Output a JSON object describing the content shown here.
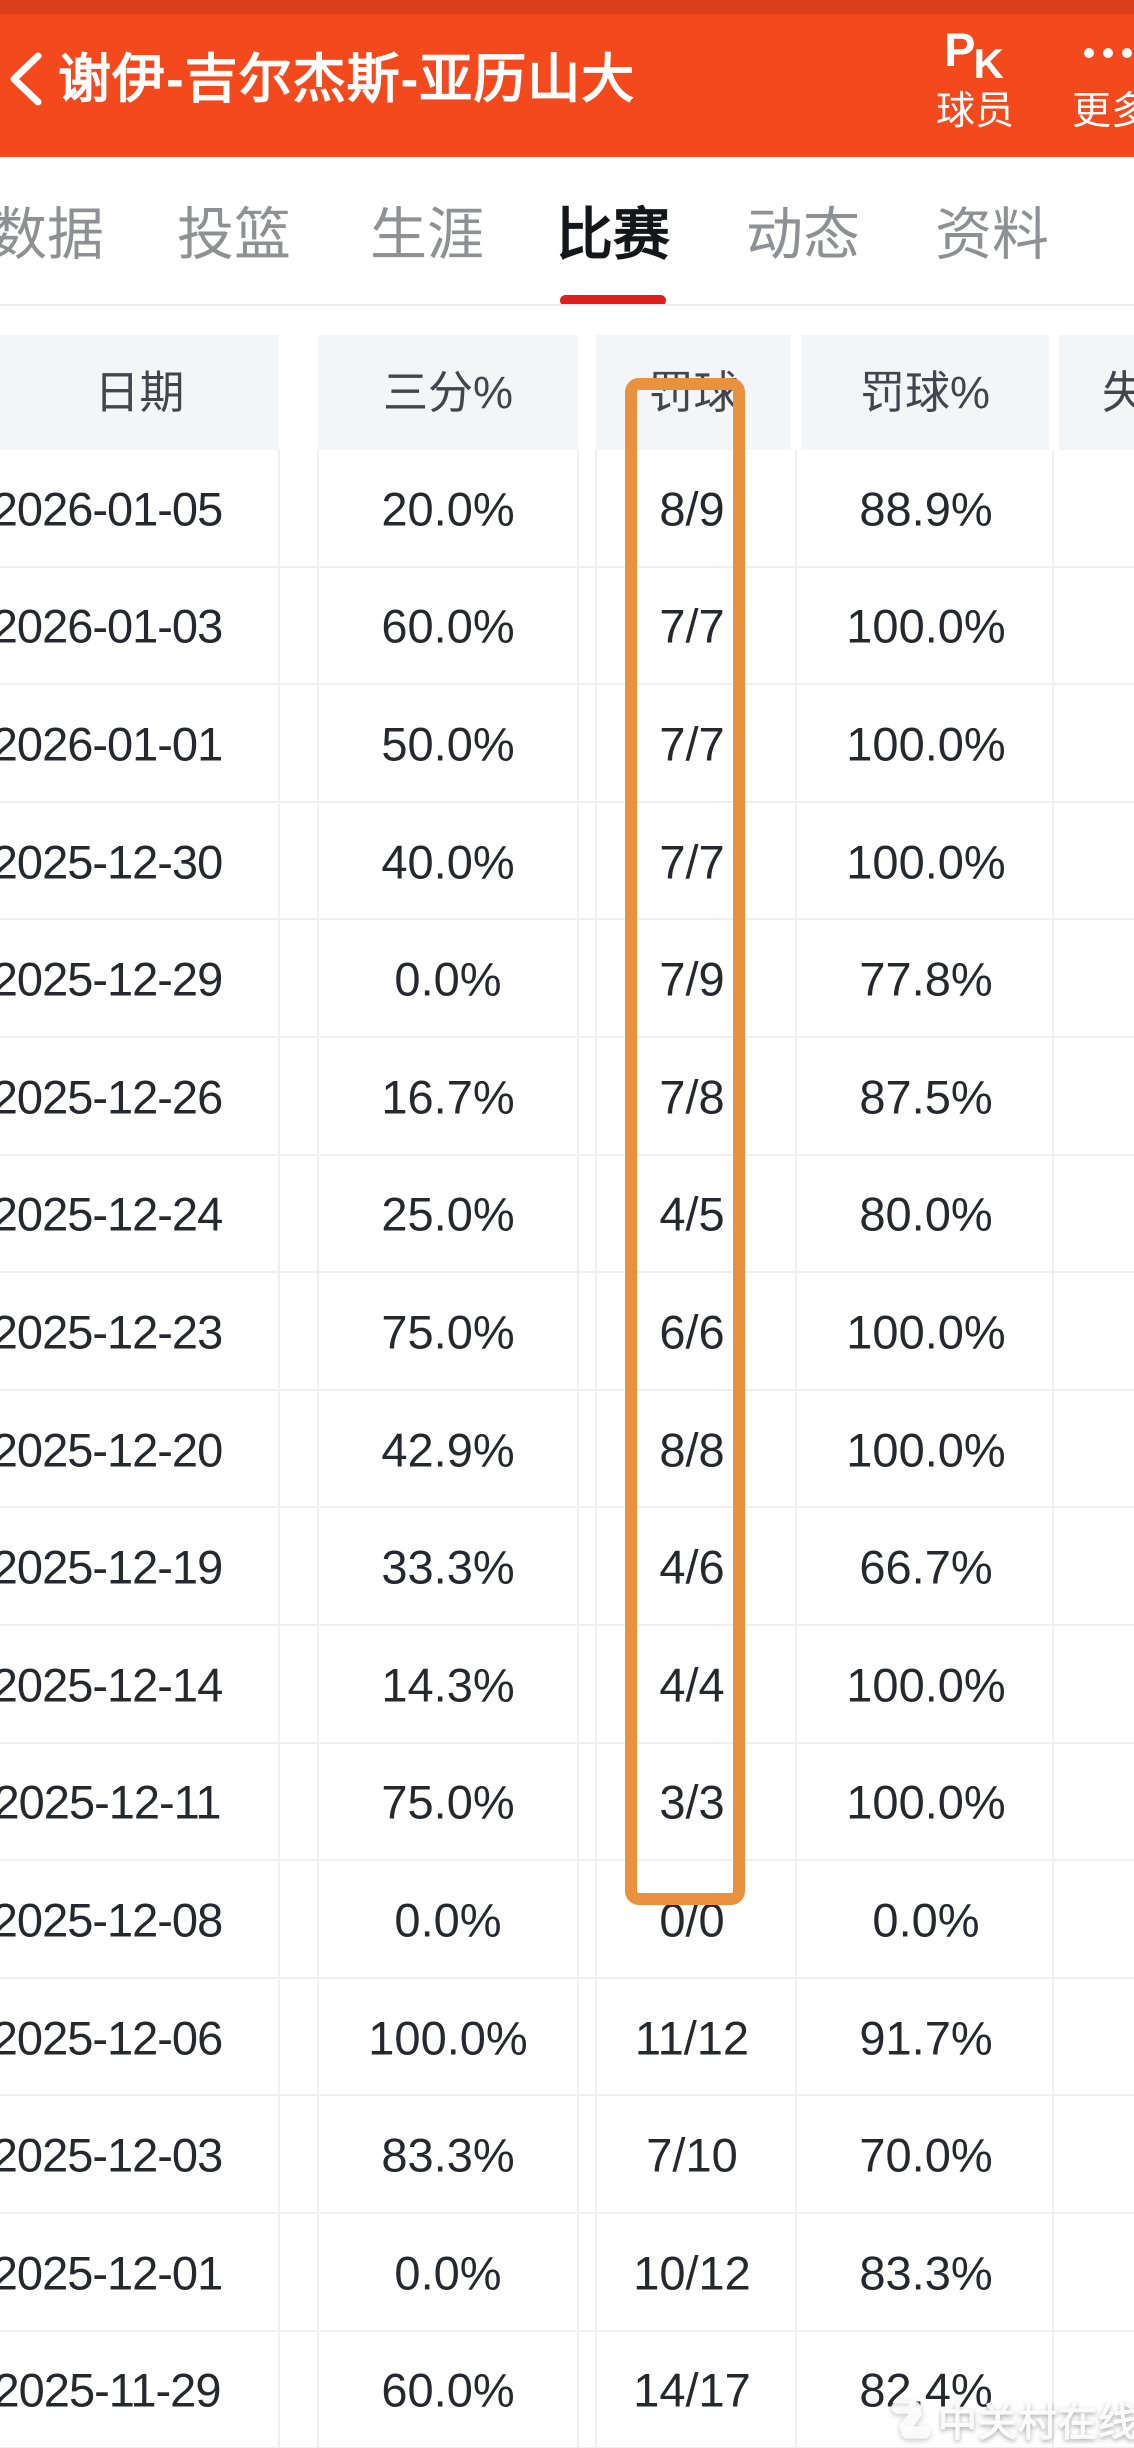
{
  "appbar": {
    "title": "谢伊-吉尔杰斯-亚历山大",
    "back_icon": "chevron-left",
    "pk_button": {
      "icon_text_p": "P",
      "icon_text_k": "K",
      "caption": "球员"
    },
    "more_button": {
      "icon": "ellipsis",
      "caption": "更多"
    },
    "bg_color": "#F3491D"
  },
  "tabs": {
    "items": [
      {
        "label": "数据",
        "active": false
      },
      {
        "label": "投篮",
        "active": false
      },
      {
        "label": "生涯",
        "active": false
      },
      {
        "label": "比赛",
        "active": true
      },
      {
        "label": "动态",
        "active": false
      },
      {
        "label": "资料",
        "active": false
      }
    ],
    "active_underline_color": "#DF1E1E"
  },
  "table": {
    "headers": [
      "日期",
      "三分%",
      "罚球",
      "罚球%",
      "失误"
    ],
    "rows": [
      {
        "date": "2026-01-05",
        "three_pct": "20.0%",
        "ft": "8/9",
        "ft_pct": "88.9%"
      },
      {
        "date": "2026-01-03",
        "three_pct": "60.0%",
        "ft": "7/7",
        "ft_pct": "100.0%"
      },
      {
        "date": "2026-01-01",
        "three_pct": "50.0%",
        "ft": "7/7",
        "ft_pct": "100.0%"
      },
      {
        "date": "2025-12-30",
        "three_pct": "40.0%",
        "ft": "7/7",
        "ft_pct": "100.0%"
      },
      {
        "date": "2025-12-29",
        "three_pct": "0.0%",
        "ft": "7/9",
        "ft_pct": "77.8%"
      },
      {
        "date": "2025-12-26",
        "three_pct": "16.7%",
        "ft": "7/8",
        "ft_pct": "87.5%"
      },
      {
        "date": "2025-12-24",
        "three_pct": "25.0%",
        "ft": "4/5",
        "ft_pct": "80.0%"
      },
      {
        "date": "2025-12-23",
        "three_pct": "75.0%",
        "ft": "6/6",
        "ft_pct": "100.0%"
      },
      {
        "date": "2025-12-20",
        "three_pct": "42.9%",
        "ft": "8/8",
        "ft_pct": "100.0%"
      },
      {
        "date": "2025-12-19",
        "three_pct": "33.3%",
        "ft": "4/6",
        "ft_pct": "66.7%"
      },
      {
        "date": "2025-12-14",
        "three_pct": "14.3%",
        "ft": "4/4",
        "ft_pct": "100.0%"
      },
      {
        "date": "2025-12-11",
        "three_pct": "75.0%",
        "ft": "3/3",
        "ft_pct": "100.0%"
      },
      {
        "date": "2025-12-08",
        "three_pct": "0.0%",
        "ft": "0/0",
        "ft_pct": "0.0%"
      },
      {
        "date": "2025-12-06",
        "three_pct": "100.0%",
        "ft": "11/12",
        "ft_pct": "91.7%"
      },
      {
        "date": "2025-12-03",
        "three_pct": "83.3%",
        "ft": "7/10",
        "ft_pct": "70.0%"
      },
      {
        "date": "2025-12-01",
        "three_pct": "0.0%",
        "ft": "10/12",
        "ft_pct": "83.3%"
      },
      {
        "date": "2025-11-29",
        "three_pct": "60.0%",
        "ft": "14/17",
        "ft_pct": "82.4%"
      }
    ]
  },
  "highlight": {
    "column": "罚球",
    "border_color": "#E9913F"
  },
  "watermark": {
    "text": "中关村在线",
    "logo": "zol-z-logo"
  }
}
